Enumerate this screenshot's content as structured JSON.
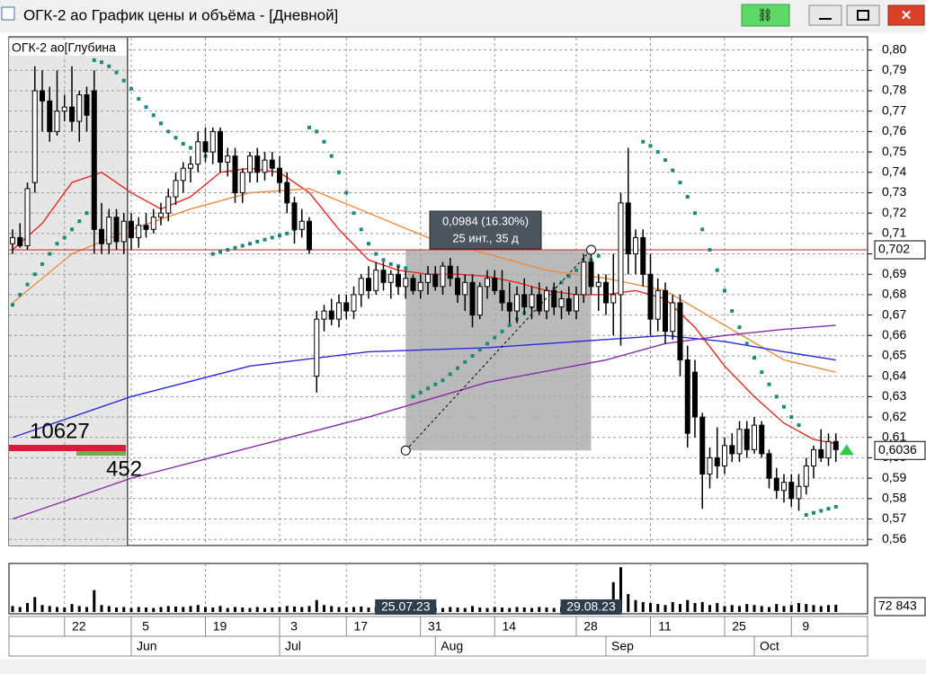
{
  "window": {
    "title": "ОГК-2 ао График цены и объёма - [Дневной]"
  },
  "chart_data": {
    "type": "candlestick",
    "instrument_label": "ОГК-2 ао[Глубина",
    "ylim": [
      0.557,
      0.806
    ],
    "yticks": [
      {
        "value": 0.56,
        "label": "0,56"
      },
      {
        "value": 0.57,
        "label": "0,57"
      },
      {
        "value": 0.58,
        "label": "0,58"
      },
      {
        "value": 0.59,
        "label": "0,59"
      },
      {
        "value": 0.6,
        "label": "0,60"
      },
      {
        "value": 0.61,
        "label": "0,61"
      },
      {
        "value": 0.62,
        "label": "0,62"
      },
      {
        "value": 0.63,
        "label": "0,63"
      },
      {
        "value": 0.64,
        "label": "0,64"
      },
      {
        "value": 0.65,
        "label": "0,65"
      },
      {
        "value": 0.66,
        "label": "0,66"
      },
      {
        "value": 0.67,
        "label": "0,67"
      },
      {
        "value": 0.68,
        "label": "0,68"
      },
      {
        "value": 0.69,
        "label": "0,69"
      },
      {
        "value": 0.7,
        "label": "0,70"
      },
      {
        "value": 0.71,
        "label": "0,71"
      },
      {
        "value": 0.72,
        "label": "0,72"
      },
      {
        "value": 0.73,
        "label": "0,73"
      },
      {
        "value": 0.74,
        "label": "0,74"
      },
      {
        "value": 0.75,
        "label": "0,75"
      },
      {
        "value": 0.76,
        "label": "0,76"
      },
      {
        "value": 0.77,
        "label": "0,77"
      },
      {
        "value": 0.78,
        "label": "0,78"
      },
      {
        "value": 0.79,
        "label": "0,79"
      },
      {
        "value": 0.8,
        "label": "0,80"
      }
    ],
    "x_ticks": [
      {
        "value": 7,
        "label": "22"
      },
      {
        "value": 16,
        "label": "5"
      },
      {
        "value": 26,
        "label": "19"
      },
      {
        "value": 36,
        "label": "3"
      },
      {
        "value": 45,
        "label": "17"
      },
      {
        "value": 55,
        "label": "31"
      },
      {
        "value": 65,
        "label": "14"
      },
      {
        "value": 76,
        "label": "28"
      },
      {
        "value": 86,
        "label": "11"
      },
      {
        "value": 96,
        "label": "25"
      },
      {
        "value": 105,
        "label": "9"
      }
    ],
    "months": [
      {
        "value": 16,
        "label": "Jun"
      },
      {
        "value": 36,
        "label": "Jul"
      },
      {
        "value": 57,
        "label": "Aug"
      },
      {
        "value": 80,
        "label": "Sep"
      },
      {
        "value": 100,
        "label": "Oct"
      }
    ],
    "candles": [
      [
        0.705,
        0.712,
        0.7,
        0.708
      ],
      [
        0.708,
        0.715,
        0.703,
        0.704
      ],
      [
        0.704,
        0.735,
        0.702,
        0.732
      ],
      [
        0.735,
        0.792,
        0.73,
        0.78
      ],
      [
        0.78,
        0.79,
        0.76,
        0.775
      ],
      [
        0.775,
        0.782,
        0.755,
        0.76
      ],
      [
        0.76,
        0.79,
        0.758,
        0.77
      ],
      [
        0.77,
        0.778,
        0.765,
        0.772
      ],
      [
        0.772,
        0.792,
        0.76,
        0.765
      ],
      [
        0.765,
        0.78,
        0.755,
        0.778
      ],
      [
        0.778,
        0.782,
        0.76,
        0.768
      ],
      [
        0.78,
        0.79,
        0.7,
        0.712
      ],
      [
        0.712,
        0.725,
        0.7,
        0.705
      ],
      [
        0.705,
        0.722,
        0.7,
        0.718
      ],
      [
        0.718,
        0.722,
        0.702,
        0.706
      ],
      [
        0.706,
        0.72,
        0.7,
        0.716
      ],
      [
        0.716,
        0.72,
        0.702,
        0.708
      ],
      [
        0.708,
        0.718,
        0.703,
        0.714
      ],
      [
        0.714,
        0.72,
        0.708,
        0.712
      ],
      [
        0.712,
        0.722,
        0.71,
        0.718
      ],
      [
        0.718,
        0.725,
        0.714,
        0.72
      ],
      [
        0.72,
        0.732,
        0.716,
        0.728
      ],
      [
        0.728,
        0.74,
        0.724,
        0.736
      ],
      [
        0.736,
        0.745,
        0.73,
        0.742
      ],
      [
        0.742,
        0.748,
        0.735,
        0.744
      ],
      [
        0.744,
        0.76,
        0.74,
        0.755
      ],
      [
        0.755,
        0.762,
        0.745,
        0.75
      ],
      [
        0.75,
        0.762,
        0.744,
        0.76
      ],
      [
        0.76,
        0.762,
        0.74,
        0.745
      ],
      [
        0.745,
        0.752,
        0.738,
        0.748
      ],
      [
        0.748,
        0.752,
        0.725,
        0.73
      ],
      [
        0.73,
        0.742,
        0.725,
        0.74
      ],
      [
        0.74,
        0.75,
        0.735,
        0.748
      ],
      [
        0.748,
        0.752,
        0.735,
        0.74
      ],
      [
        0.74,
        0.75,
        0.736,
        0.746
      ],
      [
        0.746,
        0.75,
        0.738,
        0.742
      ],
      [
        0.742,
        0.748,
        0.73,
        0.735
      ],
      [
        0.735,
        0.74,
        0.72,
        0.725
      ],
      [
        0.725,
        0.728,
        0.705,
        0.712
      ],
      [
        0.712,
        0.722,
        0.708,
        0.716
      ],
      [
        0.716,
        0.718,
        0.7,
        0.702
      ],
      [
        0.64,
        0.672,
        0.632,
        0.668
      ],
      [
        0.668,
        0.675,
        0.662,
        0.672
      ],
      [
        0.672,
        0.678,
        0.665,
        0.668
      ],
      [
        0.668,
        0.68,
        0.664,
        0.676
      ],
      [
        0.676,
        0.68,
        0.668,
        0.672
      ],
      [
        0.672,
        0.684,
        0.668,
        0.68
      ],
      [
        0.68,
        0.69,
        0.674,
        0.688
      ],
      [
        0.688,
        0.694,
        0.678,
        0.682
      ],
      [
        0.682,
        0.696,
        0.68,
        0.692
      ],
      [
        0.692,
        0.696,
        0.682,
        0.686
      ],
      [
        0.686,
        0.692,
        0.678,
        0.69
      ],
      [
        0.69,
        0.694,
        0.68,
        0.684
      ],
      [
        0.684,
        0.692,
        0.678,
        0.688
      ],
      [
        0.688,
        0.69,
        0.68,
        0.682
      ],
      [
        0.682,
        0.69,
        0.678,
        0.686
      ],
      [
        0.686,
        0.694,
        0.68,
        0.69
      ],
      [
        0.69,
        0.694,
        0.682,
        0.684
      ],
      [
        0.684,
        0.696,
        0.68,
        0.694
      ],
      [
        0.694,
        0.698,
        0.684,
        0.688
      ],
      [
        0.688,
        0.694,
        0.676,
        0.68
      ],
      [
        0.68,
        0.69,
        0.672,
        0.686
      ],
      [
        0.686,
        0.69,
        0.664,
        0.67
      ],
      [
        0.67,
        0.686,
        0.668,
        0.684
      ],
      [
        0.684,
        0.692,
        0.678,
        0.688
      ],
      [
        0.688,
        0.692,
        0.68,
        0.682
      ],
      [
        0.682,
        0.692,
        0.672,
        0.676
      ],
      [
        0.676,
        0.686,
        0.666,
        0.672
      ],
      [
        0.672,
        0.684,
        0.666,
        0.68
      ],
      [
        0.68,
        0.688,
        0.67,
        0.674
      ],
      [
        0.674,
        0.684,
        0.668,
        0.68
      ],
      [
        0.68,
        0.686,
        0.67,
        0.672
      ],
      [
        0.672,
        0.684,
        0.668,
        0.682
      ],
      [
        0.682,
        0.686,
        0.67,
        0.674
      ],
      [
        0.674,
        0.682,
        0.668,
        0.678
      ],
      [
        0.678,
        0.684,
        0.67,
        0.672
      ],
      [
        0.672,
        0.684,
        0.668,
        0.68
      ],
      [
        0.68,
        0.7,
        0.676,
        0.696
      ],
      [
        0.696,
        0.7,
        0.68,
        0.684
      ],
      [
        0.684,
        0.69,
        0.672,
        0.686
      ],
      [
        0.686,
        0.69,
        0.67,
        0.676
      ],
      [
        0.676,
        0.7,
        0.66,
        0.68
      ],
      [
        0.68,
        0.73,
        0.655,
        0.725
      ],
      [
        0.725,
        0.752,
        0.69,
        0.7
      ],
      [
        0.7,
        0.712,
        0.69,
        0.708
      ],
      [
        0.708,
        0.712,
        0.684,
        0.69
      ],
      [
        0.69,
        0.7,
        0.66,
        0.668
      ],
      [
        0.668,
        0.688,
        0.662,
        0.682
      ],
      [
        0.682,
        0.686,
        0.656,
        0.662
      ],
      [
        0.662,
        0.68,
        0.658,
        0.676
      ],
      [
        0.676,
        0.68,
        0.64,
        0.648
      ],
      [
        0.648,
        0.655,
        0.605,
        0.612
      ],
      [
        0.642,
        0.648,
        0.61,
        0.62
      ],
      [
        0.62,
        0.622,
        0.575,
        0.592
      ],
      [
        0.592,
        0.605,
        0.585,
        0.6
      ],
      [
        0.6,
        0.615,
        0.59,
        0.596
      ],
      [
        0.596,
        0.61,
        0.592,
        0.606
      ],
      [
        0.606,
        0.612,
        0.598,
        0.602
      ],
      [
        0.602,
        0.618,
        0.598,
        0.614
      ],
      [
        0.614,
        0.618,
        0.6,
        0.604
      ],
      [
        0.604,
        0.62,
        0.602,
        0.616
      ],
      [
        0.616,
        0.618,
        0.6,
        0.602
      ],
      [
        0.602,
        0.604,
        0.585,
        0.59
      ],
      [
        0.59,
        0.595,
        0.58,
        0.584
      ],
      [
        0.584,
        0.592,
        0.578,
        0.588
      ],
      [
        0.588,
        0.592,
        0.576,
        0.58
      ],
      [
        0.58,
        0.592,
        0.574,
        0.586
      ],
      [
        0.586,
        0.6,
        0.582,
        0.596
      ],
      [
        0.596,
        0.606,
        0.59,
        0.604
      ],
      [
        0.604,
        0.614,
        0.598,
        0.6
      ],
      [
        0.6,
        0.612,
        0.596,
        0.608
      ],
      [
        0.608,
        0.612,
        0.598,
        0.604
      ]
    ],
    "moving_averages": [
      {
        "color": "#e8261e",
        "x": [
          0,
          4,
          8,
          12,
          16,
          20,
          24,
          28,
          32,
          36,
          40,
          44,
          48,
          52,
          56,
          60,
          64,
          68,
          72,
          76,
          80,
          84,
          88,
          92,
          96,
          100,
          104,
          108,
          111
        ],
        "values": [
          0.702,
          0.715,
          0.735,
          0.74,
          0.73,
          0.722,
          0.728,
          0.74,
          0.742,
          0.74,
          0.73,
          0.712,
          0.697,
          0.692,
          0.69,
          0.69,
          0.689,
          0.686,
          0.682,
          0.68,
          0.68,
          0.682,
          0.678,
          0.664,
          0.645,
          0.63,
          0.617,
          0.609,
          0.607
        ]
      },
      {
        "color": "#f08a3c",
        "x": [
          0,
          8,
          16,
          24,
          32,
          40,
          48,
          56,
          64,
          72,
          80,
          88,
          96,
          104,
          111
        ],
        "values": [
          0.676,
          0.7,
          0.712,
          0.722,
          0.73,
          0.732,
          0.72,
          0.708,
          0.7,
          0.692,
          0.688,
          0.682,
          0.665,
          0.648,
          0.642
        ]
      },
      {
        "color": "#2b2bd6",
        "x": [
          0,
          16,
          32,
          48,
          64,
          80,
          88,
          96,
          104,
          111
        ],
        "values": [
          0.61,
          0.63,
          0.645,
          0.652,
          0.654,
          0.658,
          0.66,
          0.657,
          0.652,
          0.648
        ]
      },
      {
        "color": "#8a2aa8",
        "x": [
          0,
          16,
          32,
          48,
          64,
          80,
          88,
          96,
          104,
          111
        ],
        "values": [
          0.57,
          0.59,
          0.605,
          0.62,
          0.637,
          0.648,
          0.656,
          0.66,
          0.663,
          0.665
        ]
      }
    ],
    "sar_color": "#1a8a7a",
    "sar": [
      {
        "x": [
          0,
          1,
          2,
          3,
          4,
          5,
          6,
          7,
          8,
          9,
          10
        ],
        "values": [
          0.675,
          0.68,
          0.685,
          0.69,
          0.695,
          0.7,
          0.705,
          0.708,
          0.712,
          0.716,
          0.72
        ]
      },
      {
        "x": [
          11,
          12,
          13,
          14,
          15,
          16,
          17,
          18,
          19,
          20,
          21,
          22,
          23,
          24,
          25,
          26
        ],
        "values": [
          0.795,
          0.794,
          0.792,
          0.789,
          0.785,
          0.781,
          0.776,
          0.772,
          0.768,
          0.764,
          0.76,
          0.757,
          0.754,
          0.752,
          0.75,
          0.748
        ]
      },
      {
        "x": [
          27,
          28,
          29,
          30,
          31,
          32,
          33,
          34,
          35,
          36,
          37,
          38,
          39
        ],
        "values": [
          0.7,
          0.701,
          0.702,
          0.703,
          0.704,
          0.705,
          0.706,
          0.707,
          0.708,
          0.709,
          0.71,
          0.712,
          0.714
        ]
      },
      {
        "x": [
          40,
          41,
          42,
          43,
          44,
          45,
          46,
          47,
          48,
          49,
          50,
          51,
          52,
          53
        ],
        "values": [
          0.762,
          0.76,
          0.755,
          0.748,
          0.74,
          0.73,
          0.72,
          0.712,
          0.705,
          0.7,
          0.697,
          0.695,
          0.694,
          0.693
        ]
      },
      {
        "x": [
          54,
          55,
          56,
          57,
          58,
          59,
          60,
          61,
          62,
          63,
          64,
          65,
          66,
          67,
          68,
          69,
          70,
          71,
          72,
          73,
          74,
          75,
          76,
          77,
          78,
          79
        ],
        "values": [
          0.63,
          0.632,
          0.634,
          0.636,
          0.638,
          0.641,
          0.644,
          0.647,
          0.65,
          0.653,
          0.656,
          0.659,
          0.662,
          0.665,
          0.668,
          0.671,
          0.674,
          0.677,
          0.68,
          0.683,
          0.686,
          0.689,
          0.692,
          0.695,
          0.697,
          0.699
        ]
      },
      {
        "x": [
          85,
          86,
          87,
          88,
          89,
          90,
          91,
          92,
          93,
          94,
          95,
          96,
          97,
          98,
          99,
          100,
          101,
          102,
          103,
          104,
          105,
          106
        ],
        "values": [
          0.755,
          0.753,
          0.75,
          0.746,
          0.741,
          0.735,
          0.728,
          0.72,
          0.712,
          0.702,
          0.692,
          0.682,
          0.672,
          0.664,
          0.656,
          0.649,
          0.642,
          0.636,
          0.63,
          0.625,
          0.62,
          0.616
        ]
      },
      {
        "x": [
          107,
          108,
          109,
          110,
          111
        ],
        "values": [
          0.572,
          0.573,
          0.574,
          0.575,
          0.576
        ]
      }
    ],
    "price_lines": [
      {
        "value": 0.702,
        "label": "0,702",
        "color": "#d42020"
      },
      {
        "value": 0.6036,
        "label": "0,6036",
        "color": "#000000"
      }
    ],
    "depth": {
      "bid": "10627",
      "ask": "452"
    },
    "measurement": {
      "start": {
        "x": 53,
        "y": 0.6036,
        "label": "25.07.23"
      },
      "end": {
        "x": 78,
        "y": 0.702,
        "label": "29.08.23"
      },
      "text": [
        "0,0984 (16.30%)",
        "25 инт., 35 д"
      ]
    },
    "volume": {
      "ylim": [
        0,
        470000
      ],
      "last_label": "72 843",
      "values": [
        60000,
        50000,
        90000,
        150000,
        70000,
        60000,
        50000,
        45000,
        80000,
        60000,
        50000,
        220000,
        70000,
        60000,
        45000,
        50000,
        40000,
        50000,
        45000,
        40000,
        50000,
        60000,
        55000,
        50000,
        60000,
        70000,
        50000,
        45000,
        60000,
        40000,
        50000,
        45000,
        40000,
        50000,
        40000,
        45000,
        50000,
        60000,
        55000,
        50000,
        60000,
        120000,
        70000,
        60000,
        50000,
        45000,
        50000,
        55000,
        45000,
        50000,
        40000,
        45000,
        40000,
        50000,
        45000,
        40000,
        50000,
        45000,
        40000,
        50000,
        45000,
        40000,
        60000,
        45000,
        40000,
        50000,
        45000,
        40000,
        50000,
        45000,
        40000,
        50000,
        45000,
        40000,
        50000,
        45000,
        60000,
        90000,
        70000,
        60000,
        80000,
        300000,
        450000,
        180000,
        120000,
        100000,
        90000,
        80000,
        70000,
        100000,
        80000,
        120000,
        90000,
        100000,
        70000,
        90000,
        60000,
        70000,
        60000,
        80000,
        70000,
        60000,
        50000,
        80000,
        60000,
        70000,
        90000,
        80000,
        70000,
        60000,
        70000,
        72843
      ]
    }
  }
}
